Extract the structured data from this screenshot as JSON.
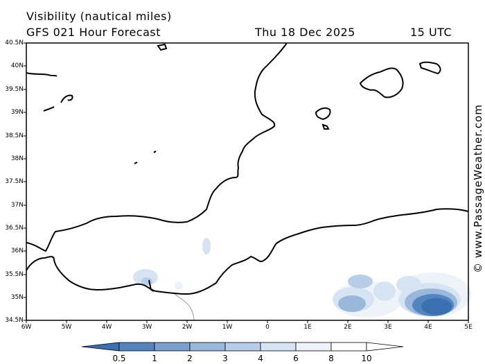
{
  "header": {
    "title": "Visibility (nautical miles)",
    "forecast": "GFS 021 Hour Forecast",
    "date": "Thu 18 Dec 2025",
    "time": "15 UTC"
  },
  "credit": "© www.PassageWeather.com",
  "axes": {
    "lat_labels": [
      "40.5N",
      "40N",
      "39.5N",
      "39N",
      "38.5N",
      "38N",
      "37.5N",
      "37N",
      "36.5N",
      "36N",
      "35.5N",
      "35N",
      "34.5N"
    ],
    "lon_labels": [
      "6W",
      "5W",
      "4W",
      "3W",
      "2W",
      "1W",
      "0",
      "1E",
      "2E",
      "3E",
      "4E",
      "5E"
    ]
  },
  "colorbar": {
    "labels": [
      "0.5",
      "1",
      "2",
      "3",
      "4",
      "6",
      "8",
      "10"
    ],
    "colors": [
      "#3a6fb0",
      "#5585c0",
      "#7aa0d0",
      "#9ab8dc",
      "#b8cde8",
      "#d6e3f3",
      "#eef3fa",
      "#ffffff"
    ]
  }
}
